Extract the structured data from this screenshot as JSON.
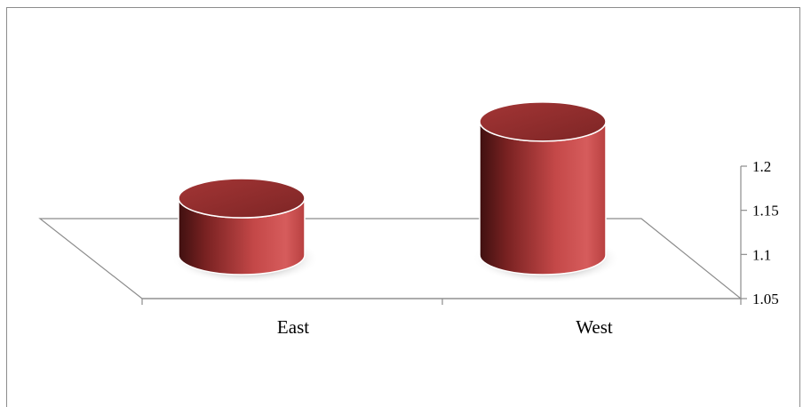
{
  "chart_data": {
    "type": "bar",
    "subtype": "3d-cylinder",
    "categories": [
      "East",
      "West"
    ],
    "values": [
      1.116,
      1.178
    ],
    "ylim": [
      1.05,
      1.2
    ],
    "yticks": [
      1.05,
      1.1,
      1.15,
      1.2
    ],
    "ytick_labels": [
      "1.05",
      "1.1",
      "1.15",
      "1.2"
    ],
    "title": "",
    "xlabel": "",
    "ylabel": "",
    "axis_side": "right",
    "grid": false,
    "legend": "none",
    "colors": {
      "bar_light": "#d35a5a",
      "bar_mid": "#b23b3b",
      "bar_dark": "#4a1414",
      "bar_top": "#8e2b2b",
      "axis": "#888888"
    }
  }
}
